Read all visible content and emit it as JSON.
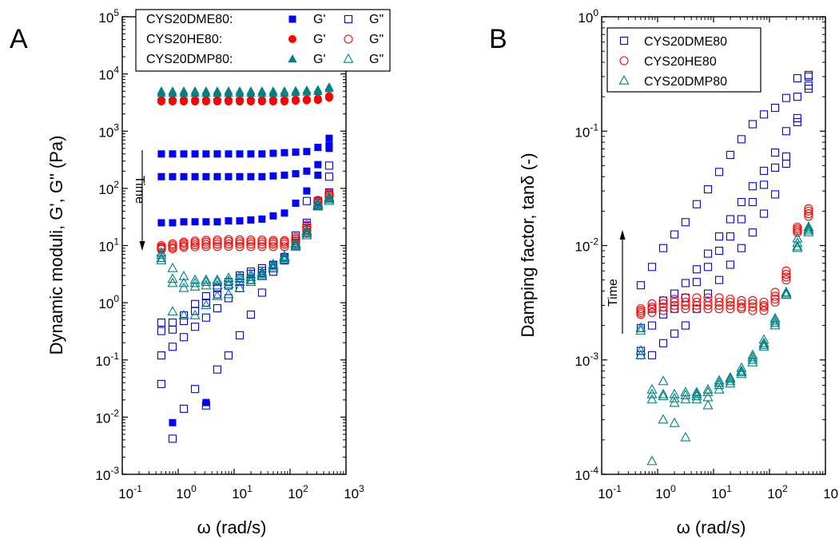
{
  "panels": [
    {
      "letter": "A",
      "xlabel": "ω (rad/s)",
      "ylabel": "Dynamic moduli, G', G\" (Pa)",
      "annotation": "Time",
      "xlim": [
        0.1,
        1000
      ],
      "ylim": [
        0.001,
        100000
      ],
      "xticks": [
        -1,
        0,
        1,
        2,
        3
      ],
      "yticks": [
        -3,
        -2,
        -1,
        0,
        1,
        2,
        3,
        4,
        5
      ],
      "legend": [
        {
          "label": "CYS20DME80:",
          "series": "CYS20DME80",
          "color": "#0000ff",
          "marker": "square",
          "filled_label": "G'",
          "open_label": "G\""
        },
        {
          "label": "CYS20HE80:",
          "series": "CYS20HE80",
          "color": "#ff0000",
          "marker": "circle",
          "filled_label": "G'",
          "open_label": "G\""
        },
        {
          "label": "CYS20DMP80:",
          "series": "CYS20DMP80",
          "color": "#008080",
          "marker": "triangle",
          "filled_label": "G'",
          "open_label": "G\""
        }
      ]
    },
    {
      "letter": "B",
      "xlabel": "ω (rad/s)",
      "ylabel": "Damping factor, tanδ (-)",
      "annotation": "Time",
      "xlim": [
        0.1,
        1000
      ],
      "ylim": [
        0.0001,
        1
      ],
      "xticks": [
        -1,
        0,
        1,
        2,
        3
      ],
      "yticks": [
        -4,
        -3,
        -2,
        -1,
        0
      ],
      "legend": [
        {
          "label": "CYS20DME80",
          "series": "CYS20DME80",
          "color": "#0000ff",
          "marker": "square"
        },
        {
          "label": "CYS20HE80",
          "series": "CYS20HE80",
          "color": "#ff0000",
          "marker": "circle"
        },
        {
          "label": "CYS20DMP80",
          "series": "CYS20DMP80",
          "color": "#008080",
          "marker": "triangle"
        }
      ]
    }
  ],
  "chart_data": [
    {
      "type": "scatter",
      "panel": "A",
      "xscale": "log",
      "yscale": "log",
      "xlabel": "ω (rad/s)",
      "ylabel": "Dynamic moduli, G', G\" (Pa)",
      "xlim": [
        0.1,
        1000
      ],
      "ylim": [
        0.001,
        100000
      ],
      "legend_position": "top-right",
      "omega": [
        0.5,
        0.794,
        1.26,
        2.0,
        3.15,
        5.0,
        7.94,
        12.6,
        19.9,
        31.5,
        50.0,
        79.4,
        126,
        199,
        315,
        500
      ],
      "series": [
        {
          "name": "CYS20DME80",
          "quantity": "G'",
          "color": "#0000ff",
          "marker": "square",
          "filled": true,
          "curves": [
            [
              null,
              0.008,
              null,
              null,
              0.018,
              null,
              null,
              null,
              null,
              null,
              null,
              null,
              null,
              null,
              null,
              null
            ],
            [
              25,
              25,
              26,
              26,
              26,
              26,
              27,
              27,
              28,
              29,
              33,
              37,
              55,
              90,
              170,
              500
            ],
            [
              160,
              160,
              160,
              160,
              160,
              160,
              160,
              160,
              160,
              160,
              165,
              170,
              180,
              200,
              260,
              560
            ],
            [
              400,
              400,
              400,
              400,
              400,
              400,
              400,
              400,
              400,
              400,
              410,
              420,
              430,
              440,
              520,
              750
            ]
          ]
        },
        {
          "name": "CYS20DME80",
          "quantity": "G\"",
          "color": "#0000ff",
          "marker": "square",
          "filled": false,
          "curves": [
            [
              0.038,
              0.0042,
              0.014,
              0.031,
              0.016,
              0.068,
              0.12,
              0.27,
              0.62,
              1.5,
              3.5,
              5.5,
              12,
              60,
              60,
              75
            ],
            [
              0.12,
              0.17,
              0.25,
              0.38,
              0.55,
              0.8,
              1.2,
              1.8,
              2.5,
              3.3,
              4.5,
              6.0,
              10,
              25,
              50,
              85
            ],
            [
              0.32,
              0.34,
              0.48,
              0.72,
              1.0,
              1.4,
              2.0,
              2.7,
              3.2,
              3.6,
              4.6,
              6.0,
              10,
              20,
              60,
              160
            ],
            [
              0.45,
              0.45,
              0.6,
              0.95,
              1.3,
              1.8,
              2.3,
              3.0,
              3.5,
              4.0,
              4.5,
              6.3,
              15,
              22,
              55,
              250
            ]
          ]
        },
        {
          "name": "CYS20HE80",
          "quantity": "G'",
          "color": "#ff0000",
          "marker": "circle",
          "filled": true,
          "curves": [
            [
              3300,
              3300,
              3300,
              3300,
              3300,
              3300,
              3300,
              3300,
              3300,
              3300,
              3300,
              3300,
              3400,
              3450,
              3500,
              3850
            ],
            [
              3500,
              3500,
              3500,
              3500,
              3500,
              3500,
              3500,
              3500,
              3500,
              3500,
              3500,
              3500,
              3550,
              3600,
              3700,
              4100
            ]
          ]
        },
        {
          "name": "CYS20HE80",
          "quantity": "G\"",
          "color": "#ff0000",
          "marker": "circle",
          "filled": false,
          "curves": [
            [
              8.6,
              8.8,
              9.4,
              9.5,
              9.6,
              9.6,
              9.7,
              9.6,
              9.6,
              9.6,
              9.6,
              9.6,
              11,
              17,
              50,
              70
            ],
            [
              9.0,
              9.3,
              10,
              10.3,
              10.5,
              10.6,
              10.7,
              10.7,
              10.6,
              10.6,
              10.6,
              10.6,
              12,
              19,
              55,
              75
            ],
            [
              9.4,
              10,
              10.8,
              11.2,
              11.5,
              11.6,
              11.8,
              11.7,
              11.6,
              11.6,
              11.5,
              11.5,
              13,
              21,
              58,
              78
            ],
            [
              10,
              10.7,
              11.5,
              12,
              12.4,
              12.5,
              12.7,
              12.6,
              12.5,
              12.5,
              12.3,
              12.2,
              14,
              23,
              62,
              82
            ]
          ]
        },
        {
          "name": "CYS20DMP80",
          "quantity": "G'",
          "color": "#008080",
          "marker": "triangle",
          "filled": true,
          "curves": [
            [
              4600,
              4600,
              4600,
              4600,
              4600,
              4600,
              4600,
              4600,
              4600,
              4600,
              4600,
              4600,
              4700,
              4800,
              4900,
              5500
            ],
            [
              5000,
              5000,
              5000,
              5000,
              5000,
              5000,
              5000,
              5000,
              5000,
              5000,
              5000,
              5000,
              5100,
              5200,
              5300,
              5900
            ]
          ]
        },
        {
          "name": "CYS20DMP80",
          "quantity": "G\"",
          "color": "#008080",
          "marker": "triangle",
          "filled": false,
          "curves": [
            [
              5.5,
              0.7,
              0.6,
              0.6,
              0.9,
              1.3,
              1.4,
              1.8,
              2.3,
              2.9,
              3.9,
              5.6,
              9.5,
              15,
              48,
              60
            ],
            [
              6.0,
              2.2,
              1.8,
              1.9,
              2.0,
              2.0,
              2.1,
              2.3,
              2.5,
              3.0,
              4.1,
              5.9,
              10,
              16,
              50,
              64
            ],
            [
              6.8,
              2.6,
              2.2,
              2.2,
              2.3,
              2.3,
              2.4,
              2.6,
              2.8,
              3.2,
              4.4,
              6.2,
              10.5,
              17,
              52,
              67
            ],
            [
              7.5,
              4.0,
              2.9,
              2.5,
              2.5,
              2.5,
              2.7,
              2.9,
              3.1,
              3.4,
              4.7,
              6.5,
              11,
              18,
              55,
              70
            ]
          ]
        }
      ]
    },
    {
      "type": "scatter",
      "panel": "B",
      "xscale": "log",
      "yscale": "log",
      "xlabel": "ω (rad/s)",
      "ylabel": "Damping factor, tanδ (-)",
      "xlim": [
        0.1,
        1000
      ],
      "ylim": [
        0.0001,
        1
      ],
      "legend_position": "top-left",
      "omega": [
        0.5,
        0.794,
        1.26,
        2.0,
        3.15,
        5.0,
        7.94,
        12.6,
        19.9,
        31.5,
        50.0,
        79.4,
        126,
        199,
        315,
        500
      ],
      "series": [
        {
          "name": "CYS20DME80",
          "color": "#0000ff",
          "marker": "square",
          "filled": false,
          "curves": [
            [
              0.0045,
              0.0065,
              0.0095,
              0.0125,
              0.016,
              0.023,
              0.031,
              0.044,
              0.062,
              0.085,
              0.115,
              0.14,
              0.16,
              0.195,
              0.29,
              0.31
            ],
            [
              0.0019,
              0.0028,
              0.0033,
              0.0038,
              0.0047,
              0.0062,
              0.0085,
              0.012,
              0.017,
              0.024,
              0.033,
              0.045,
              0.065,
              0.1,
              0.2,
              0.235
            ],
            [
              0.0011,
              0.002,
              0.0025,
              0.0028,
              0.0035,
              0.0048,
              0.0065,
              0.009,
              0.012,
              0.017,
              0.024,
              0.034,
              0.048,
              0.06,
              0.13,
              0.3
            ],
            [
              0.0012,
              0.0011,
              0.0014,
              0.0017,
              0.002,
              0.0028,
              0.0038,
              0.005,
              0.0068,
              0.0095,
              0.013,
              0.019,
              0.028,
              0.052,
              0.12,
              0.25
            ]
          ]
        },
        {
          "name": "CYS20HE80",
          "color": "#ff0000",
          "marker": "circle",
          "filled": false,
          "curves": [
            [
              0.0025,
              0.0026,
              0.0027,
              0.0028,
              0.0028,
              0.0028,
              0.0028,
              0.0028,
              0.0028,
              0.0028,
              0.0027,
              0.0027,
              0.0032,
              0.005,
              0.013,
              0.018
            ],
            [
              0.0026,
              0.0028,
              0.0029,
              0.003,
              0.003,
              0.003,
              0.003,
              0.003,
              0.003,
              0.0029,
              0.0029,
              0.0029,
              0.0034,
              0.0053,
              0.0135,
              0.019
            ],
            [
              0.0027,
              0.0029,
              0.0031,
              0.0032,
              0.0032,
              0.0032,
              0.0032,
              0.0032,
              0.0032,
              0.0031,
              0.0031,
              0.003,
              0.0036,
              0.0056,
              0.014,
              0.02
            ],
            [
              0.0028,
              0.0031,
              0.0033,
              0.0034,
              0.0035,
              0.0035,
              0.0035,
              0.0035,
              0.0034,
              0.0033,
              0.0033,
              0.0032,
              0.0039,
              0.006,
              0.0145,
              0.021
            ]
          ]
        },
        {
          "name": "CYS20DMP80",
          "color": "#008080",
          "marker": "triangle",
          "filled": false,
          "curves": [
            [
              0.0011,
              0.00013,
              0.0003,
              0.00028,
              0.00021,
              0.00045,
              0.0004,
              0.00055,
              0.00062,
              0.00075,
              0.00095,
              0.0013,
              0.002,
              0.0037,
              0.0095,
              0.013
            ],
            [
              0.0012,
              0.00045,
              0.0005,
              0.00042,
              0.00045,
              0.00048,
              0.00047,
              0.0006,
              0.00065,
              0.00078,
              0.001,
              0.00135,
              0.0021,
              0.0037,
              0.0098,
              0.0135
            ],
            [
              0.0018,
              0.0005,
              0.00065,
              0.00046,
              0.00049,
              0.0005,
              0.00052,
              0.00063,
              0.00068,
              0.0008,
              0.00105,
              0.0014,
              0.0022,
              0.0038,
              0.0105,
              0.014
            ],
            [
              0.0019,
              0.00055,
              0.00048,
              0.0005,
              0.00052,
              0.00052,
              0.00055,
              0.00066,
              0.0007,
              0.00085,
              0.0011,
              0.0015,
              0.0023,
              0.0039,
              0.0115,
              0.0145
            ]
          ]
        }
      ]
    }
  ]
}
